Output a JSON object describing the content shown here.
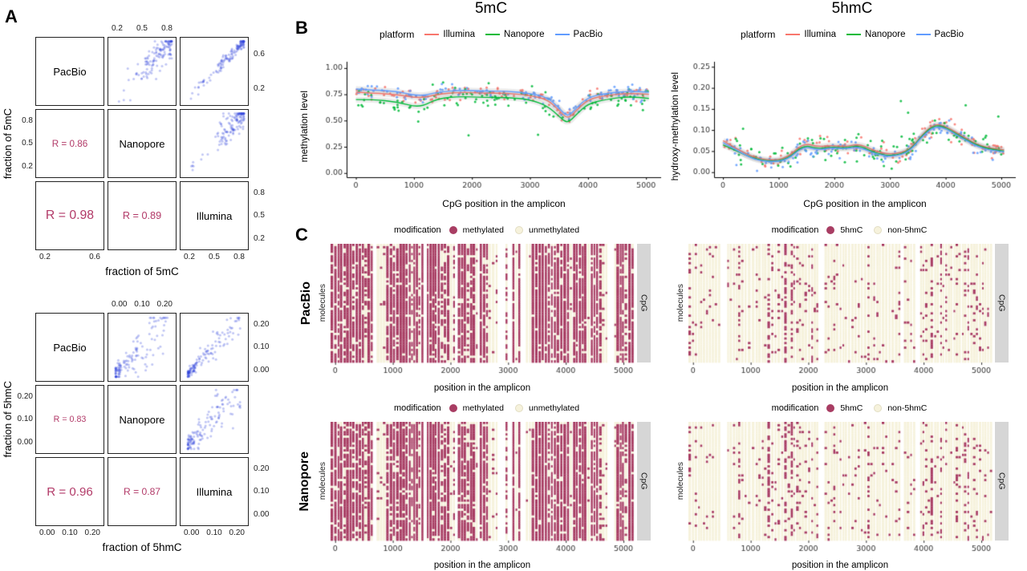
{
  "figure": {
    "panel_a_label": "A",
    "panel_b_label": "B",
    "panel_c_label": "C",
    "column_titles": {
      "left": "5mC",
      "right": "5hmC"
    }
  },
  "colors": {
    "illumina": "#F8766D",
    "nanopore": "#00BA38",
    "pacbio": "#619CFF",
    "pairs_point": "rgba(45,65,220,0.30)",
    "r_text": "#B23A68",
    "methylated": "#A83D63",
    "unmethylated": "#F6F2DC",
    "strip_bg": "#D6D6D6"
  },
  "chart_data": [
    {
      "id": "pairs_5mC",
      "type": "scatter_matrix",
      "xlabel": "fraction of 5mC",
      "ylabel": "fraction of 5mC",
      "diagonal": [
        "PacBio",
        "Nanopore",
        "Illumina"
      ],
      "r_labels": {
        "nanopore_vs_pacbio": "R = 0.86",
        "illumina_vs_pacbio": "R = 0.98",
        "illumina_vs_nanopore": "R = 0.89"
      },
      "r_values": {
        "nanopore_vs_pacbio": 0.86,
        "illumina_vs_pacbio": 0.98,
        "illumina_vs_nanopore": 0.89
      },
      "value_range": [
        0.13,
        0.93
      ],
      "distribution": "high_cluster",
      "ticks": {
        "top": [
          "0.2",
          "0.5",
          "0.8"
        ],
        "right_top": [
          "0.6",
          "0.2"
        ],
        "right_bottom": [
          "0.8",
          "0.5",
          "0.2"
        ],
        "left_middle": [
          "0.8",
          "0.5",
          "0.2"
        ],
        "bottom_left": [
          "0.2",
          "0.6"
        ],
        "bottom_right": [
          "0.2",
          "0.5",
          "0.8"
        ]
      }
    },
    {
      "id": "pairs_5hmC",
      "type": "scatter_matrix",
      "xlabel": "fraction of 5hmC",
      "ylabel": "fraction of 5hmC",
      "diagonal": [
        "PacBio",
        "Nanopore",
        "Illumina"
      ],
      "r_labels": {
        "nanopore_vs_pacbio": "R = 0.83",
        "illumina_vs_pacbio": "R = 0.96",
        "illumina_vs_nanopore": "R = 0.87"
      },
      "r_values": {
        "nanopore_vs_pacbio": 0.83,
        "illumina_vs_pacbio": 0.96,
        "illumina_vs_nanopore": 0.87
      },
      "value_range": [
        -0.005,
        0.245
      ],
      "distribution": "low_cluster",
      "ticks": {
        "top": [
          "0.00",
          "0.10",
          "0.20"
        ],
        "right_top": [
          "0.20",
          "0.10",
          "0.00"
        ],
        "right_bottom": [
          "0.20",
          "0.10",
          "0.00"
        ],
        "left_middle": [
          "0.20",
          "0.10",
          "0.00"
        ],
        "bottom_left": [
          "0.00",
          "0.10",
          "0.20"
        ],
        "bottom_right": [
          "0.00",
          "0.10",
          "0.20"
        ]
      }
    },
    {
      "id": "smooth_5mC",
      "type": "scatter_smooth",
      "title": "5mC",
      "legend_title": "platform",
      "xlabel": "CpG position in the amplicon",
      "ylabel": "methylation level",
      "xlim": [
        -160,
        5260
      ],
      "ylim": [
        -0.04,
        1.06
      ],
      "xticks": [
        0,
        1000,
        2000,
        3000,
        4000,
        5000
      ],
      "yticks": [
        "0.00",
        "0.25",
        "0.50",
        "0.75",
        "1.00"
      ],
      "ytick_vals": [
        0,
        0.25,
        0.5,
        0.75,
        1.0
      ],
      "n_points": 115,
      "curve_x": [
        0,
        300,
        700,
        1100,
        1400,
        1800,
        2200,
        2600,
        3000,
        3300,
        3500,
        3650,
        3800,
        4000,
        4300,
        4700,
        5050
      ],
      "series": [
        {
          "name": "Illumina",
          "color": "#F8766D",
          "jitter": 0.035,
          "curve_y": [
            0.77,
            0.76,
            0.75,
            0.71,
            0.75,
            0.77,
            0.76,
            0.76,
            0.74,
            0.7,
            0.6,
            0.51,
            0.6,
            0.7,
            0.74,
            0.76,
            0.75
          ]
        },
        {
          "name": "Nanopore",
          "color": "#00BA38",
          "jitter": 0.055,
          "curve_y": [
            0.7,
            0.7,
            0.68,
            0.62,
            0.71,
            0.73,
            0.72,
            0.72,
            0.7,
            0.64,
            0.54,
            0.47,
            0.56,
            0.66,
            0.7,
            0.73,
            0.71
          ]
        },
        {
          "name": "PacBio",
          "color": "#619CFF",
          "jitter": 0.035,
          "curve_y": [
            0.8,
            0.79,
            0.78,
            0.73,
            0.77,
            0.79,
            0.78,
            0.78,
            0.76,
            0.72,
            0.62,
            0.53,
            0.62,
            0.72,
            0.76,
            0.78,
            0.77
          ]
        }
      ]
    },
    {
      "id": "smooth_5hmC",
      "type": "scatter_smooth",
      "title": "5hmC",
      "legend_title": "platform",
      "xlabel": "CpG position in the amplicon",
      "ylabel": "hydroxy-methylation level",
      "xlim": [
        -160,
        5260
      ],
      "ylim": [
        -0.012,
        0.262
      ],
      "xticks": [
        0,
        1000,
        2000,
        3000,
        4000,
        5000
      ],
      "yticks": [
        "0.00",
        "0.05",
        "0.10",
        "0.15",
        "0.20",
        "0.25"
      ],
      "ytick_vals": [
        0,
        0.05,
        0.1,
        0.15,
        0.2,
        0.25
      ],
      "n_points": 115,
      "curve_x": [
        0,
        250,
        550,
        850,
        1150,
        1450,
        1700,
        1950,
        2200,
        2450,
        2750,
        3050,
        3350,
        3600,
        3800,
        4000,
        4300,
        4650,
        5050
      ],
      "series": [
        {
          "name": "Illumina",
          "color": "#F8766D",
          "jitter": 0.012,
          "curve_y": [
            0.075,
            0.055,
            0.035,
            0.028,
            0.033,
            0.07,
            0.06,
            0.064,
            0.06,
            0.068,
            0.048,
            0.042,
            0.052,
            0.092,
            0.115,
            0.11,
            0.085,
            0.06,
            0.053
          ]
        },
        {
          "name": "Nanopore",
          "color": "#00BA38",
          "jitter": 0.02,
          "curve_y": [
            0.065,
            0.05,
            0.032,
            0.025,
            0.03,
            0.065,
            0.055,
            0.06,
            0.057,
            0.064,
            0.044,
            0.038,
            0.05,
            0.09,
            0.112,
            0.107,
            0.082,
            0.058,
            0.05
          ]
        },
        {
          "name": "PacBio",
          "color": "#619CFF",
          "jitter": 0.012,
          "curve_y": [
            0.07,
            0.052,
            0.03,
            0.024,
            0.028,
            0.062,
            0.052,
            0.058,
            0.055,
            0.06,
            0.042,
            0.036,
            0.048,
            0.088,
            0.108,
            0.104,
            0.08,
            0.055,
            0.048
          ]
        }
      ]
    },
    {
      "id": "heatmap_5mC_PacBio",
      "type": "heatmap",
      "row_label": "PacBio",
      "ylabel": "molecules",
      "xlabel": "position in the amplicon",
      "strip_label": "CpG",
      "legend_title": "modification",
      "legend_items": [
        "methylated",
        "unmethylated"
      ],
      "xticks": [
        0,
        1000,
        2000,
        3000,
        4000,
        5000
      ],
      "xlim": [
        -80,
        5180
      ],
      "mode": "5mc",
      "n_molecules": 52,
      "methylated_fraction": 0.74
    },
    {
      "id": "heatmap_5mC_Nanopore",
      "type": "heatmap",
      "row_label": "Nanopore",
      "ylabel": "molecules",
      "xlabel": "position in the amplicon",
      "strip_label": "CpG",
      "legend_title": "modification",
      "legend_items": [
        "methylated",
        "unmethylated"
      ],
      "xticks": [
        0,
        1000,
        2000,
        3000,
        4000,
        5000
      ],
      "xlim": [
        -80,
        5180
      ],
      "mode": "5mc",
      "n_molecules": 52,
      "methylated_fraction": 0.72
    },
    {
      "id": "heatmap_5hmC_PacBio",
      "type": "heatmap",
      "row_label": "PacBio",
      "ylabel": "molecules",
      "xlabel": "position in the amplicon",
      "strip_label": "CpG",
      "legend_title": "modification",
      "legend_items": [
        "5hmC",
        "non-5hmC"
      ],
      "xticks": [
        0,
        1000,
        2000,
        3000,
        4000,
        5000
      ],
      "xlim": [
        -80,
        5180
      ],
      "mode": "5hmc",
      "n_molecules": 52,
      "methylated_fraction": 0.07
    },
    {
      "id": "heatmap_5hmC_Nanopore",
      "type": "heatmap",
      "row_label": "Nanopore",
      "ylabel": "molecules",
      "xlabel": "position in the amplicon",
      "strip_label": "CpG",
      "legend_title": "modification",
      "legend_items": [
        "5hmC",
        "non-5hmC"
      ],
      "xticks": [
        0,
        1000,
        2000,
        3000,
        4000,
        5000
      ],
      "xlim": [
        -80,
        5180
      ],
      "mode": "5hmc",
      "n_molecules": 52,
      "methylated_fraction": 0.08
    }
  ]
}
